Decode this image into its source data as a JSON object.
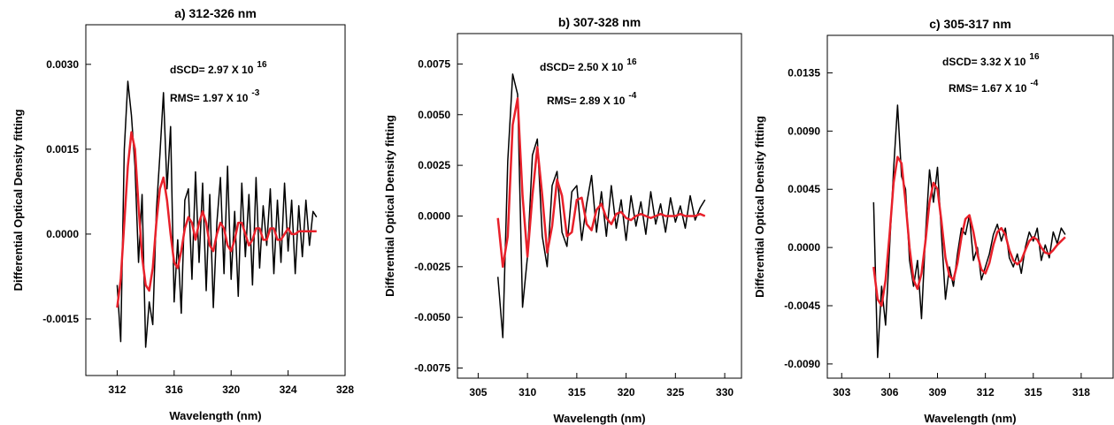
{
  "chart_data": [
    {
      "type": "line",
      "title": "a) 312-326 nm",
      "xlabel": "Wavelength (nm)",
      "ylabel": "Differential Optical Density fitting",
      "annotations": [
        {
          "text": "dSCD= 2.97 X 10",
          "sup": "16"
        },
        {
          "text": "RMS= 1.97 X 10",
          "sup": "-3"
        }
      ],
      "xlim": [
        309.8,
        328
      ],
      "ylim": [
        -0.0025,
        0.0037
      ],
      "xticks": [
        312,
        316,
        320,
        324,
        328
      ],
      "yticks": [
        {
          "value": -0.0015,
          "label": "-0.0015"
        },
        {
          "value": 0,
          "label": "0.0000"
        },
        {
          "value": 0.0015,
          "label": "0.0015"
        },
        {
          "value": 0.003,
          "label": "0.0030"
        }
      ],
      "x": [
        312,
        312.25,
        312.5,
        312.75,
        313,
        313.25,
        313.5,
        313.75,
        314,
        314.25,
        314.5,
        314.75,
        315,
        315.25,
        315.5,
        315.75,
        316,
        316.25,
        316.5,
        316.75,
        317,
        317.25,
        317.5,
        317.75,
        318,
        318.25,
        318.5,
        318.75,
        319,
        319.25,
        319.5,
        319.75,
        320,
        320.25,
        320.5,
        320.75,
        321,
        321.25,
        321.5,
        321.75,
        322,
        322.25,
        322.5,
        322.75,
        323,
        323.25,
        323.5,
        323.75,
        324,
        324.25,
        324.5,
        324.75,
        325,
        325.25,
        325.5,
        325.75,
        326
      ],
      "series": [
        {
          "color": "#000000",
          "values": [
            -0.0009,
            -0.0019,
            0.0015,
            0.0027,
            0.0021,
            0.0012,
            -0.0005,
            0.0007,
            -0.002,
            -0.0012,
            -0.0016,
            0.0004,
            0.0014,
            0.0025,
            0.0008,
            0.0019,
            -0.0012,
            -0.0001,
            -0.0014,
            0.0006,
            0.0008,
            -0.0008,
            0.0011,
            -0.0005,
            0.0009,
            -0.001,
            0.0007,
            -0.0013,
            0.0002,
            0.001,
            -0.0007,
            0.0012,
            -0.0008,
            0.0004,
            -0.0011,
            0.0009,
            -0.0004,
            0.0007,
            -0.0009,
            0.001,
            -0.0006,
            0.0005,
            -0.0002,
            0.0008,
            -0.0007,
            0.0006,
            -0.0005,
            0.0009,
            -0.0003,
            0.0006,
            -0.0007,
            0.0005,
            -0.0004,
            0.0006,
            -0.0002,
            0.0004,
            0.0003
          ]
        },
        {
          "color": "#e8202a",
          "values": [
            -0.0013,
            -0.0008,
            0.0002,
            0.0012,
            0.0018,
            0.0015,
            0.0005,
            -0.0004,
            -0.0009,
            -0.001,
            -0.0006,
            0.0002,
            0.0008,
            0.001,
            0.0006,
            0,
            -0.0005,
            -0.0006,
            -0.0003,
            0.0001,
            0.0003,
            0.0002,
            -0.0001,
            0.0002,
            0.0004,
            0.0002,
            -0.0002,
            -0.0003,
            0,
            0.0002,
            0.0001,
            -0.0002,
            -0.0003,
            -0.0001,
            0.0002,
            0.0002,
            0,
            -0.0002,
            -0.0001,
            0.0001,
            0.0001,
            -0.0001,
            -0.0001,
            0.0001,
            0.0001,
            -0.0001,
            -0.0001,
            0,
            0.0001,
            0,
            0,
            5e-05,
            5e-05,
            5e-05,
            5e-05,
            5e-05,
            5e-05
          ]
        }
      ]
    },
    {
      "type": "line",
      "title": "b) 307-328 nm",
      "xlabel": "Wavelength (nm)",
      "ylabel": "Differential Optical Density fitting",
      "annotations": [
        {
          "text": "dSCD= 2.50 X 10",
          "sup": "16"
        },
        {
          "text": "RMS= 2.89 X 10",
          "sup": "-4"
        }
      ],
      "xlim": [
        302.9,
        331.7
      ],
      "ylim": [
        -0.008,
        0.009
      ],
      "xticks": [
        305,
        310,
        315,
        320,
        325,
        330
      ],
      "yticks": [
        {
          "value": -0.0075,
          "label": "-0.0075"
        },
        {
          "value": -0.005,
          "label": "-0.0050"
        },
        {
          "value": -0.0025,
          "label": "-0.0025"
        },
        {
          "value": 0,
          "label": "0.0000"
        },
        {
          "value": 0.0025,
          "label": "0.0025"
        },
        {
          "value": 0.005,
          "label": "0.0050"
        },
        {
          "value": 0.0075,
          "label": "0.0075"
        }
      ],
      "x": [
        307,
        307.5,
        308,
        308.5,
        309,
        309.5,
        310,
        310.5,
        311,
        311.5,
        312,
        312.5,
        313,
        313.5,
        314,
        314.5,
        315,
        315.5,
        316,
        316.5,
        317,
        317.5,
        318,
        318.5,
        319,
        319.5,
        320,
        320.5,
        321,
        321.5,
        322,
        322.5,
        323,
        323.5,
        324,
        324.5,
        325,
        325.5,
        326,
        326.5,
        327,
        327.5,
        328
      ],
      "series": [
        {
          "color": "#000000",
          "values": [
            -0.003,
            -0.006,
            0.0027,
            0.007,
            0.006,
            -0.0045,
            -0.002,
            0.003,
            0.0038,
            -0.001,
            -0.0025,
            0.0015,
            0.0022,
            -0.0008,
            -0.0015,
            0.0012,
            0.0015,
            -0.0012,
            0.0006,
            0.002,
            -0.0008,
            0.0012,
            -0.001,
            0.0015,
            -0.0006,
            0.0008,
            -0.0012,
            0.001,
            -0.0005,
            0.0007,
            -0.0009,
            0.0012,
            -0.0004,
            0.0006,
            -0.0008,
            0.0009,
            -0.0003,
            0.0005,
            -0.0006,
            0.001,
            -0.0002,
            0.0004,
            0.0008
          ]
        },
        {
          "color": "#e8202a",
          "values": [
            -0.0001,
            -0.0025,
            -0.001,
            0.0045,
            0.0058,
            0.001,
            -0.002,
            0.001,
            0.0034,
            0.001,
            -0.0018,
            -0.0005,
            0.0018,
            0.001,
            -0.001,
            -0.0008,
            0.0008,
            0.0009,
            -0.0004,
            -0.0007,
            0.0003,
            0.0006,
            -0.0001,
            -0.0004,
            0.0001,
            0.0002,
            -0.0001,
            -0.0002,
            0,
            0.0001,
            0,
            -0.0001,
            0,
            0.0001,
            0,
            0,
            0,
            0.0001,
            0,
            0,
            0,
            0.0001,
            0
          ]
        }
      ]
    },
    {
      "type": "line",
      "title": "c) 305-317 nm",
      "xlabel": "Wavelength (nm)",
      "ylabel": "Differential Optical Density fitting",
      "annotations": [
        {
          "text": "dSCD= 3.32 X 10",
          "sup": "16"
        },
        {
          "text": "RMS= 1.67 X 10",
          "sup": "-4"
        }
      ],
      "xlim": [
        302.1,
        320
      ],
      "ylim": [
        -0.0101,
        0.0164
      ],
      "xticks": [
        303,
        306,
        309,
        312,
        315,
        318
      ],
      "yticks": [
        {
          "value": -0.009,
          "label": "-0.0090"
        },
        {
          "value": -0.0045,
          "label": "-0.0045"
        },
        {
          "value": 0,
          "label": "0.0000"
        },
        {
          "value": 0.0045,
          "label": "0.0045"
        },
        {
          "value": 0.009,
          "label": "0.0090"
        },
        {
          "value": 0.0135,
          "label": "0.0135"
        }
      ],
      "x": [
        305,
        305.25,
        305.5,
        305.75,
        306,
        306.25,
        306.5,
        306.75,
        307,
        307.25,
        307.5,
        307.75,
        308,
        308.25,
        308.5,
        308.75,
        309,
        309.25,
        309.5,
        309.75,
        310,
        310.25,
        310.5,
        310.75,
        311,
        311.25,
        311.5,
        311.75,
        312,
        312.25,
        312.5,
        312.75,
        313,
        313.25,
        313.5,
        313.75,
        314,
        314.25,
        314.5,
        314.75,
        315,
        315.25,
        315.5,
        315.75,
        316,
        316.25,
        316.5,
        316.75,
        317
      ],
      "series": [
        {
          "color": "#000000",
          "values": [
            0.0035,
            -0.0085,
            -0.003,
            -0.006,
            0,
            0.006,
            0.011,
            0.0055,
            0.0045,
            -0.001,
            -0.003,
            -0.001,
            -0.0055,
            0.001,
            0.006,
            0.0035,
            0.0062,
            0.001,
            -0.004,
            -0.0015,
            -0.003,
            -0.0005,
            0.0015,
            0.001,
            0.0025,
            -0.001,
            0,
            -0.0025,
            -0.0015,
            -0.0005,
            0.001,
            0.0018,
            0.0005,
            0.0015,
            -0.0008,
            -0.0015,
            -0.0005,
            -0.002,
            0,
            0.0012,
            0.0005,
            0.0015,
            -0.001,
            0.0002,
            -0.0008,
            0.0012,
            0.0003,
            0.0015,
            0.001
          ]
        },
        {
          "color": "#e8202a",
          "values": [
            -0.0015,
            -0.004,
            -0.0045,
            -0.0025,
            0.001,
            0.005,
            0.007,
            0.0065,
            0.0035,
            0,
            -0.0025,
            -0.0032,
            -0.002,
            0.0005,
            0.0035,
            0.005,
            0.0045,
            0.002,
            -0.0008,
            -0.0022,
            -0.0025,
            -0.0012,
            0.0008,
            0.0022,
            0.0025,
            0.0012,
            -0.0005,
            -0.0017,
            -0.002,
            -0.0012,
            0.0002,
            0.0012,
            0.0015,
            0.001,
            -0.0002,
            -0.001,
            -0.0013,
            -0.001,
            -0.0002,
            0.0005,
            0.0008,
            0.0006,
            0,
            -0.0004,
            -0.0005,
            -0.0002,
            0.0002,
            0.0005,
            0.0008
          ]
        }
      ]
    }
  ]
}
